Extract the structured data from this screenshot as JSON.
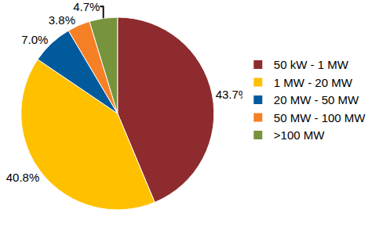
{
  "chart_data": {
    "type": "pie",
    "categories": [
      "50 kW - 1 MW",
      "1 MW - 20 MW",
      "20 MW - 50 MW",
      "50 MW - 100 MW",
      ">100 MW"
    ],
    "values": [
      43.7,
      40.8,
      7.0,
      3.8,
      4.7
    ],
    "value_labels": [
      "43.7%",
      "40.8%",
      "7.0%",
      "3.8%",
      "4.7%"
    ],
    "colors": [
      "#8E2B2E",
      "#FFC000",
      "#005A9C",
      "#F58025",
      "#77933C"
    ],
    "data_labels": true,
    "legend": "right"
  }
}
